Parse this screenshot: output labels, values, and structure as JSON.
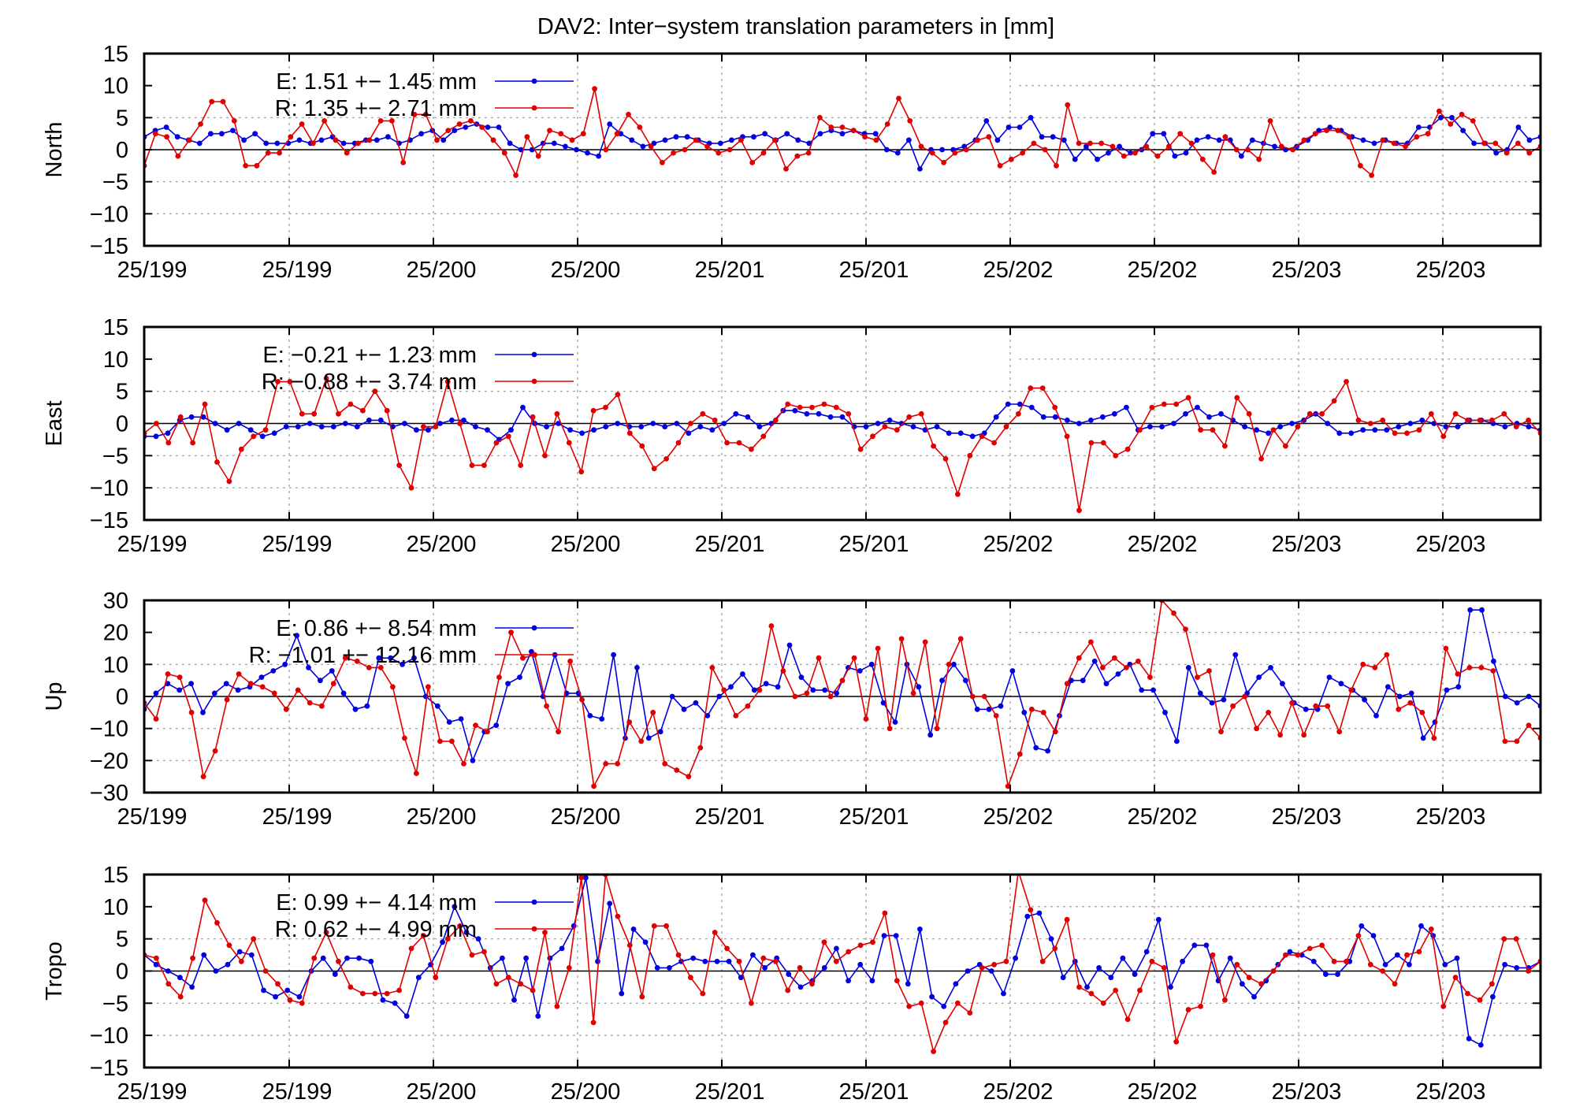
{
  "title": "DAV2: Inter−system translation parameters in [mm]",
  "x_tick_labels": [
    "25/199",
    "25/199",
    "25/200",
    "25/200",
    "25/201",
    "25/201",
    "25/202",
    "25/202",
    "25/203",
    "25/203"
  ],
  "colors": {
    "E": "#0000e0",
    "R": "#e00000"
  },
  "chart_data": [
    {
      "type": "line",
      "ylabel": "North",
      "ylim": [
        -15,
        15
      ],
      "yticks": [
        -15,
        -10,
        -5,
        0,
        5,
        10,
        15
      ],
      "grid": true,
      "legend_position": "top-left",
      "series": [
        {
          "name": "E",
          "legend": "E:   1.51 +− 1.45 mm",
          "color": "#0000e0",
          "values": [
            2,
            3,
            3.5,
            2,
            1.5,
            1,
            2.5,
            2.5,
            3,
            1.5,
            2.5,
            1,
            1,
            1,
            1.5,
            1,
            1.5,
            2,
            1,
            1,
            1.5,
            1.5,
            2,
            1,
            1.5,
            2.5,
            3,
            1.5,
            3,
            3.5,
            4,
            3.5,
            3.5,
            1,
            0,
            0,
            1,
            1,
            0.5,
            0,
            -0.5,
            -1,
            4,
            2.5,
            1.5,
            0.5,
            1,
            1.5,
            2,
            2,
            1.5,
            1,
            1,
            1.5,
            2,
            2,
            2.5,
            1.5,
            2.5,
            1.5,
            1,
            2.5,
            3,
            2.5,
            3,
            2.5,
            2.5,
            0,
            -0.5,
            1.5,
            -3,
            0,
            0,
            0,
            0.5,
            1.5,
            4.5,
            1.5,
            3.5,
            3.5,
            5,
            2,
            2,
            1.5,
            -1.5,
            0.5,
            -1.5,
            -0.5,
            0.5,
            -0.5,
            0,
            2.5,
            2.5,
            -1,
            -0.5,
            1.5,
            2,
            1.5,
            1.5,
            -1,
            1.5,
            1,
            0.5,
            0,
            0.5,
            1.5,
            3,
            3.5,
            3,
            2,
            1.5,
            1,
            1.5,
            1,
            1,
            3.5,
            3.5,
            5,
            5,
            3,
            1,
            1,
            -0.5,
            0,
            3.5,
            1.5,
            2
          ]
        },
        {
          "name": "R",
          "legend": "R:   1.35 +− 2.71 mm",
          "color": "#e00000",
          "values": [
            -2.5,
            2.5,
            2,
            -1,
            1.5,
            4,
            7.5,
            7.5,
            4.5,
            -2.5,
            -2.5,
            -0.5,
            -0.5,
            2,
            4,
            1,
            4.5,
            1.5,
            -0.5,
            1,
            1.5,
            4.5,
            4.5,
            -2,
            5.5,
            5.5,
            1.5,
            3,
            4,
            4.5,
            3.5,
            1.5,
            -0.5,
            -4,
            2,
            -1,
            3,
            2.5,
            1.5,
            2.5,
            9.5,
            0,
            2.5,
            5.5,
            3.5,
            0.5,
            -2,
            -0.5,
            0,
            1.5,
            0.5,
            -0.5,
            0,
            1.5,
            -2,
            -0.5,
            1.5,
            -3,
            -1,
            -0.5,
            5,
            3.5,
            3.5,
            3,
            2,
            1.5,
            4,
            8,
            4.5,
            0.5,
            -0.5,
            -2,
            -0.5,
            0,
            1.5,
            2,
            -2.5,
            -1.5,
            -0.5,
            1,
            0,
            -2.5,
            7,
            1,
            1,
            1,
            0.5,
            -1,
            -0.5,
            0.5,
            -1,
            0.5,
            2.5,
            1,
            -1.5,
            -3.5,
            2,
            0,
            0,
            -1.5,
            4.5,
            0.5,
            0,
            1.5,
            2.5,
            3,
            3,
            2,
            -2.5,
            -4,
            1.5,
            1,
            0.5,
            2,
            2.5,
            6,
            4,
            5.5,
            4.5,
            1,
            1,
            -0.5,
            1,
            -0.5,
            0.5
          ]
        }
      ]
    },
    {
      "type": "line",
      "ylabel": "East",
      "ylim": [
        -15,
        15
      ],
      "yticks": [
        -15,
        -10,
        -5,
        0,
        5,
        10,
        15
      ],
      "grid": true,
      "legend_position": "top-left",
      "series": [
        {
          "name": "E",
          "legend": "E:  −0.21 +− 1.23 mm",
          "color": "#0000e0",
          "values": [
            -2,
            -2,
            -1.5,
            0.5,
            1,
            1,
            0,
            -1,
            0,
            -1,
            -2,
            -1.5,
            -0.5,
            -0.5,
            0,
            -0.5,
            -0.5,
            0,
            -0.5,
            0.5,
            0.5,
            -0.5,
            0,
            -1,
            -1,
            0,
            0.5,
            0.5,
            -0.5,
            -1,
            -2.5,
            -1,
            2.5,
            0,
            -0.5,
            0,
            -1,
            -1.5,
            -1,
            -0.5,
            0,
            -0.5,
            -0.5,
            0,
            -0.5,
            0,
            -1.5,
            -0.5,
            -1,
            0,
            1.5,
            1,
            -0.5,
            0,
            2,
            2,
            1.5,
            1.5,
            1,
            1,
            -0.5,
            -0.5,
            0,
            0.5,
            0,
            -0.5,
            -1,
            -0.5,
            -1.5,
            -1.5,
            -2,
            -1.5,
            1,
            3,
            3,
            2.5,
            1,
            1,
            0.5,
            0,
            0.5,
            1,
            1.5,
            2.5,
            -1,
            -0.5,
            -0.5,
            0,
            1.5,
            2.5,
            1,
            1.5,
            0.5,
            -0.5,
            -1,
            -1.5,
            -0.5,
            0,
            0.5,
            1.5,
            0,
            -1.5,
            -1.5,
            -1,
            -1,
            -1,
            -0.5,
            0,
            0.5,
            0,
            -0.5,
            -0.5,
            0.5,
            0.5,
            0,
            -0.5,
            0,
            -0.5,
            -1
          ]
        },
        {
          "name": "R",
          "legend": "R:  −0.88 +− 3.74 mm",
          "color": "#e00000",
          "values": [
            -1.5,
            0,
            -3,
            1,
            -3,
            3,
            -6,
            -9,
            -4,
            -2,
            -1,
            6.5,
            6.5,
            1.5,
            1.5,
            7,
            1.5,
            3,
            2,
            5,
            2,
            -6.5,
            -10,
            -0.5,
            -0.5,
            6.5,
            0,
            -6.5,
            -6.5,
            -3,
            -2,
            -6.5,
            1,
            -5,
            1.5,
            -3,
            -7.5,
            2,
            2.5,
            4.5,
            -1.5,
            -3.5,
            -7,
            -5.5,
            -3,
            0,
            1.5,
            0.5,
            -3,
            -3,
            -4,
            -2,
            0.5,
            3,
            2.5,
            2.5,
            3,
            2.5,
            1.5,
            -4,
            -2,
            -0.5,
            -1,
            1,
            1.5,
            -3.5,
            -5.5,
            -11,
            -5,
            -2,
            -3,
            -0.5,
            1.5,
            5.5,
            5.5,
            2.5,
            -2,
            -13.5,
            -3,
            -3,
            -5,
            -4,
            -1,
            2.5,
            3,
            3,
            4,
            -1,
            -1,
            -3.5,
            4,
            1.5,
            -5.5,
            -1,
            -3.5,
            -0.5,
            1.5,
            1.5,
            3.5,
            6.5,
            0.5,
            0,
            0.5,
            -1.5,
            -1.5,
            -1,
            1.5,
            -2,
            1.5,
            0.5,
            0.5,
            0.5,
            1.5,
            -0.5,
            0.5,
            -1.5
          ]
        }
      ]
    },
    {
      "type": "line",
      "ylabel": "Up",
      "ylim": [
        -30,
        30
      ],
      "yticks": [
        -30,
        -20,
        -10,
        0,
        10,
        20,
        30
      ],
      "grid": true,
      "legend_position": "top-left",
      "series": [
        {
          "name": "E",
          "legend": "E:   0.86 +− 8.54 mm",
          "color": "#0000e0",
          "values": [
            -4,
            1,
            4,
            2,
            4,
            -5,
            1,
            4,
            2,
            3,
            6,
            8,
            10,
            19,
            9,
            5,
            8,
            1,
            -4,
            -3,
            12,
            12,
            10,
            12,
            0,
            -3,
            -8,
            -7,
            -20,
            -11,
            -9,
            4,
            6,
            14,
            0,
            13,
            1,
            1,
            -6,
            -7,
            13,
            -13,
            9,
            -13,
            -11,
            0,
            -4,
            -2,
            -6,
            0,
            3,
            7,
            2,
            4,
            3,
            16,
            6,
            2,
            2,
            1,
            9,
            8,
            10,
            -2,
            -8,
            10,
            3,
            -12,
            5,
            10,
            5,
            -4,
            -4,
            -3,
            8,
            -5,
            -16,
            -17,
            -6,
            5,
            5,
            11,
            4,
            7,
            10,
            2,
            2,
            -5,
            -14,
            9,
            1,
            -2,
            -1,
            13,
            1,
            6,
            9,
            4,
            -2,
            -4,
            -4,
            6,
            4,
            2,
            -1,
            -6,
            3,
            0,
            1,
            -13,
            -8,
            2,
            3,
            27,
            27,
            11,
            0,
            -2,
            0,
            -3
          ]
        },
        {
          "name": "R",
          "legend": "R:  −1.01 +− 12.16 mm",
          "color": "#e00000",
          "values": [
            -2,
            -7,
            7,
            6,
            -5,
            -25,
            -17,
            -1,
            7,
            4,
            3,
            1,
            -4,
            2,
            -2,
            -3,
            4,
            12,
            11,
            9,
            9,
            3,
            -13,
            -24,
            3,
            -14,
            -14,
            -21,
            -9,
            -11,
            6,
            20,
            12,
            13,
            -3,
            -11,
            11,
            -1,
            -28,
            -21,
            -21,
            -8,
            -14,
            -5,
            -21,
            -23,
            -25,
            -16,
            9,
            2,
            -6,
            -3,
            2,
            22,
            8,
            0,
            1,
            12,
            0,
            5,
            12,
            -7,
            15,
            -10,
            18,
            1,
            17,
            -10,
            10,
            18,
            0,
            0,
            -6,
            -28,
            -18,
            -4,
            -5,
            -11,
            4,
            12,
            17,
            9,
            12,
            9,
            11,
            6,
            30,
            26,
            21,
            6,
            8,
            -11,
            -3,
            0,
            -10,
            -5,
            -12,
            -2,
            -12,
            -3,
            -3,
            -11,
            2,
            10,
            9,
            13,
            -4,
            -2,
            -5,
            -13,
            15,
            7,
            9,
            9,
            8,
            -14,
            -14,
            -9,
            -13
          ]
        }
      ]
    },
    {
      "type": "line",
      "ylabel": "Tropo",
      "ylim": [
        -15,
        15
      ],
      "yticks": [
        -15,
        -10,
        -5,
        0,
        5,
        10,
        15
      ],
      "grid": true,
      "legend_position": "top-left",
      "series": [
        {
          "name": "E",
          "legend": "E:   0.99 +− 4.14 mm",
          "color": "#0000e0",
          "values": [
            2.5,
            1,
            0,
            -1,
            -2.5,
            2.5,
            0,
            1,
            3,
            2.5,
            -3,
            -4,
            -3,
            -4,
            0,
            2,
            -0.5,
            2,
            2,
            1.5,
            -4.5,
            -5,
            -7,
            -1,
            1,
            4.5,
            10,
            6,
            5,
            0.5,
            2,
            -4.5,
            2,
            -7,
            2,
            3.5,
            7,
            14.5,
            1.5,
            10.5,
            -3.5,
            6.5,
            4.5,
            0.5,
            0.5,
            1.5,
            2,
            1.5,
            1.5,
            1.5,
            -1,
            2.5,
            0.5,
            2,
            -0.5,
            -2.5,
            -1.5,
            0.5,
            3.5,
            -1.5,
            1,
            -1.5,
            5.5,
            5.5,
            -2,
            6.5,
            -4,
            -5.5,
            -2,
            0,
            1,
            0,
            -3.5,
            2,
            8.5,
            9,
            5,
            -1,
            1.5,
            -2.5,
            0.5,
            -1,
            2,
            -0.5,
            3,
            8,
            -2.5,
            1.5,
            4,
            4,
            -1.5,
            2,
            -2,
            -4,
            -1.5,
            1,
            3,
            2.5,
            1.5,
            -0.5,
            -0.5,
            1.5,
            7,
            5.5,
            1,
            2.5,
            1,
            7,
            5.5,
            1,
            2,
            -10.5,
            -11.5,
            -4,
            1,
            0.5,
            0.5,
            1.5
          ]
        },
        {
          "name": "R",
          "legend": "R:   0.62 +− 4.99 mm",
          "color": "#e00000",
          "values": [
            2.5,
            2,
            -2,
            -4,
            2,
            11,
            7.5,
            4,
            1.5,
            5,
            0,
            -2,
            -4.5,
            -5,
            2,
            6,
            1.5,
            -2.5,
            -3.5,
            -3.5,
            -3.5,
            -3,
            3.5,
            5.5,
            -1,
            5,
            7,
            2.5,
            3,
            -2,
            -1,
            -2,
            -3,
            6,
            -5.5,
            0.5,
            14.5,
            -8,
            15,
            8.5,
            4,
            -4,
            7,
            7,
            2.5,
            -1,
            -3.5,
            6,
            3.5,
            1.5,
            -5,
            2,
            1.5,
            -3,
            0.5,
            -2,
            4.5,
            1.5,
            3,
            4,
            4.5,
            9,
            -1.5,
            -5.5,
            -5,
            -12.5,
            -8,
            -5,
            -6.5,
            0.5,
            1,
            1.5,
            15.5,
            9.5,
            1.5,
            3.5,
            8,
            -2.5,
            -3.5,
            -5,
            -3,
            -7.5,
            -3,
            1.5,
            0.5,
            -11,
            -6,
            -5.5,
            2.5,
            -4.5,
            1,
            -1,
            -2,
            0,
            2.5,
            2.5,
            3.5,
            4,
            1.5,
            1.5,
            5.5,
            1,
            0,
            -2,
            2.5,
            3,
            6.5,
            -5.5,
            -1,
            -3.5,
            -4.5,
            -2,
            5,
            5,
            0,
            1.5
          ]
        }
      ]
    }
  ]
}
